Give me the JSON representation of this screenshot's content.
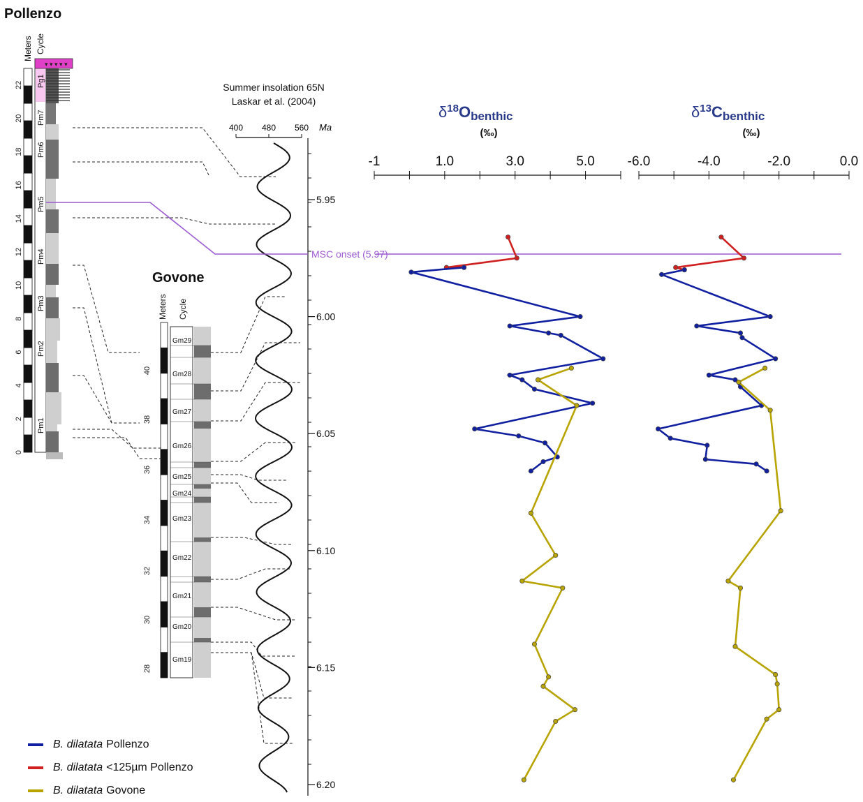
{
  "pollenzo": {
    "title": "Pollenzo",
    "meters_label": "Meters",
    "cycle_label": "Cycle",
    "meter_ticks": [
      "0",
      "2",
      "4",
      "6",
      "8",
      "10",
      "12",
      "14",
      "16",
      "18",
      "20",
      "22"
    ],
    "cycles": [
      "Pm1",
      "Pm2",
      "Pm3",
      "Pm4",
      "Pm5",
      "Pm6",
      "Pm7",
      "Pg1"
    ]
  },
  "govone": {
    "title": "Govone",
    "meters_label": "Meters",
    "cycle_label": "Cycle",
    "meter_ticks": [
      "28",
      "30",
      "32",
      "34",
      "36",
      "38",
      "40"
    ],
    "cycles": [
      "Gm19",
      "Gm20",
      "Gm21",
      "Gm22",
      "Gm23",
      "Gm24",
      "Gm25",
      "Gm26",
      "Gm27",
      "Gm28",
      "Gm29"
    ]
  },
  "insolation": {
    "title_line1": "Summer insolation 65N",
    "title_line2": "Laskar et al. (2004)",
    "axis_ticks": [
      "400",
      "480",
      "560"
    ],
    "age_unit": "Ma",
    "age_ticks": [
      "5.95",
      "6.00",
      "6.05",
      "6.10",
      "6.15",
      "6.20"
    ]
  },
  "msc": {
    "label": "MSC onset (5.97)",
    "age": 5.97,
    "color": "#9b59d0"
  },
  "chart_data": [
    {
      "type": "line",
      "title_symbol": "δ",
      "title_superscript": "18",
      "title_element": "O",
      "title_subscript": "benthic",
      "unit": "(‰)",
      "xticks": [
        "-1",
        "1.0",
        "3.0",
        "5.0"
      ],
      "xlim": [
        -1,
        6
      ],
      "ylabel": "Ma",
      "ylim": [
        5.915,
        6.205
      ],
      "y_reversed": true,
      "series": [
        {
          "name": "B. dilatata <125µm Pollenzo",
          "color": "#d02020",
          "points": [
            [
              2.8,
              5.966
            ],
            [
              3.05,
              5.975
            ],
            [
              1.05,
              5.979
            ],
            [
              1.55,
              5.979
            ]
          ]
        },
        {
          "name": "B. dilatata Pollenzo",
          "color": "#1020a0",
          "points": [
            [
              1.55,
              5.979
            ],
            [
              0.05,
              5.981
            ],
            [
              4.85,
              6.0
            ],
            [
              2.85,
              6.004
            ],
            [
              3.95,
              6.007
            ],
            [
              4.3,
              6.008
            ],
            [
              5.5,
              6.018
            ],
            [
              2.85,
              6.025
            ],
            [
              3.2,
              6.027
            ],
            [
              3.55,
              6.031
            ],
            [
              5.2,
              6.037
            ],
            [
              1.85,
              6.048
            ],
            [
              3.1,
              6.051
            ],
            [
              3.85,
              6.054
            ],
            [
              4.2,
              6.06
            ],
            [
              3.8,
              6.062
            ],
            [
              3.45,
              6.066
            ]
          ]
        },
        {
          "name": "B. dilatata Govone",
          "color": "#b8a400",
          "points": [
            [
              4.6,
              6.022
            ],
            [
              3.65,
              6.027
            ],
            [
              4.75,
              6.038
            ],
            [
              3.45,
              6.084
            ],
            [
              4.15,
              6.102
            ],
            [
              3.2,
              6.113
            ],
            [
              4.35,
              6.116
            ],
            [
              3.55,
              6.14
            ],
            [
              3.95,
              6.154
            ],
            [
              3.8,
              6.158
            ],
            [
              4.7,
              6.168
            ],
            [
              4.15,
              6.173
            ],
            [
              3.25,
              6.198
            ]
          ]
        }
      ]
    },
    {
      "type": "line",
      "title_symbol": "δ",
      "title_superscript": "13",
      "title_element": "C",
      "title_subscript": "benthic",
      "unit": "(‰)",
      "xticks": [
        "-6.0",
        "-4.0",
        "-2.0",
        "0.0"
      ],
      "xlim": [
        -6,
        0
      ],
      "ylabel": "Ma",
      "ylim": [
        5.915,
        6.205
      ],
      "y_reversed": true,
      "series": [
        {
          "name": "B. dilatata <125µm Pollenzo",
          "color": "#d02020",
          "points": [
            [
              -3.65,
              5.966
            ],
            [
              -3.0,
              5.975
            ],
            [
              -4.95,
              5.979
            ],
            [
              -4.7,
              5.98
            ]
          ]
        },
        {
          "name": "B. dilatata Pollenzo",
          "color": "#1020a0",
          "points": [
            [
              -4.7,
              5.98
            ],
            [
              -5.35,
              5.982
            ],
            [
              -2.25,
              6.0
            ],
            [
              -4.35,
              6.004
            ],
            [
              -3.1,
              6.007
            ],
            [
              -3.05,
              6.009
            ],
            [
              -2.1,
              6.018
            ],
            [
              -4.0,
              6.025
            ],
            [
              -3.25,
              6.027
            ],
            [
              -3.1,
              6.03
            ],
            [
              -2.5,
              6.038
            ],
            [
              -5.45,
              6.048
            ],
            [
              -5.1,
              6.052
            ],
            [
              -4.05,
              6.055
            ],
            [
              -4.1,
              6.061
            ],
            [
              -2.65,
              6.063
            ],
            [
              -2.35,
              6.066
            ]
          ]
        },
        {
          "name": "B. dilatata Govone",
          "color": "#b8a400",
          "points": [
            [
              -2.4,
              6.022
            ],
            [
              -3.15,
              6.028
            ],
            [
              -2.25,
              6.04
            ],
            [
              -1.95,
              6.083
            ],
            [
              -3.45,
              6.113
            ],
            [
              -3.1,
              6.116
            ],
            [
              -3.25,
              6.141
            ],
            [
              -2.1,
              6.153
            ],
            [
              -2.05,
              6.157
            ],
            [
              -2.0,
              6.168
            ],
            [
              -2.35,
              6.172
            ],
            [
              -3.3,
              6.198
            ]
          ]
        }
      ]
    }
  ],
  "legend": [
    {
      "italic": "B. dilatata",
      "rest": "Pollenzo",
      "color": "#1020a0"
    },
    {
      "italic": "B. dilatata",
      "rest": "<125µm Pollenzo",
      "color": "#d02020"
    },
    {
      "italic": "B. dilatata",
      "rest": "Govone",
      "color": "#b8a400"
    }
  ]
}
